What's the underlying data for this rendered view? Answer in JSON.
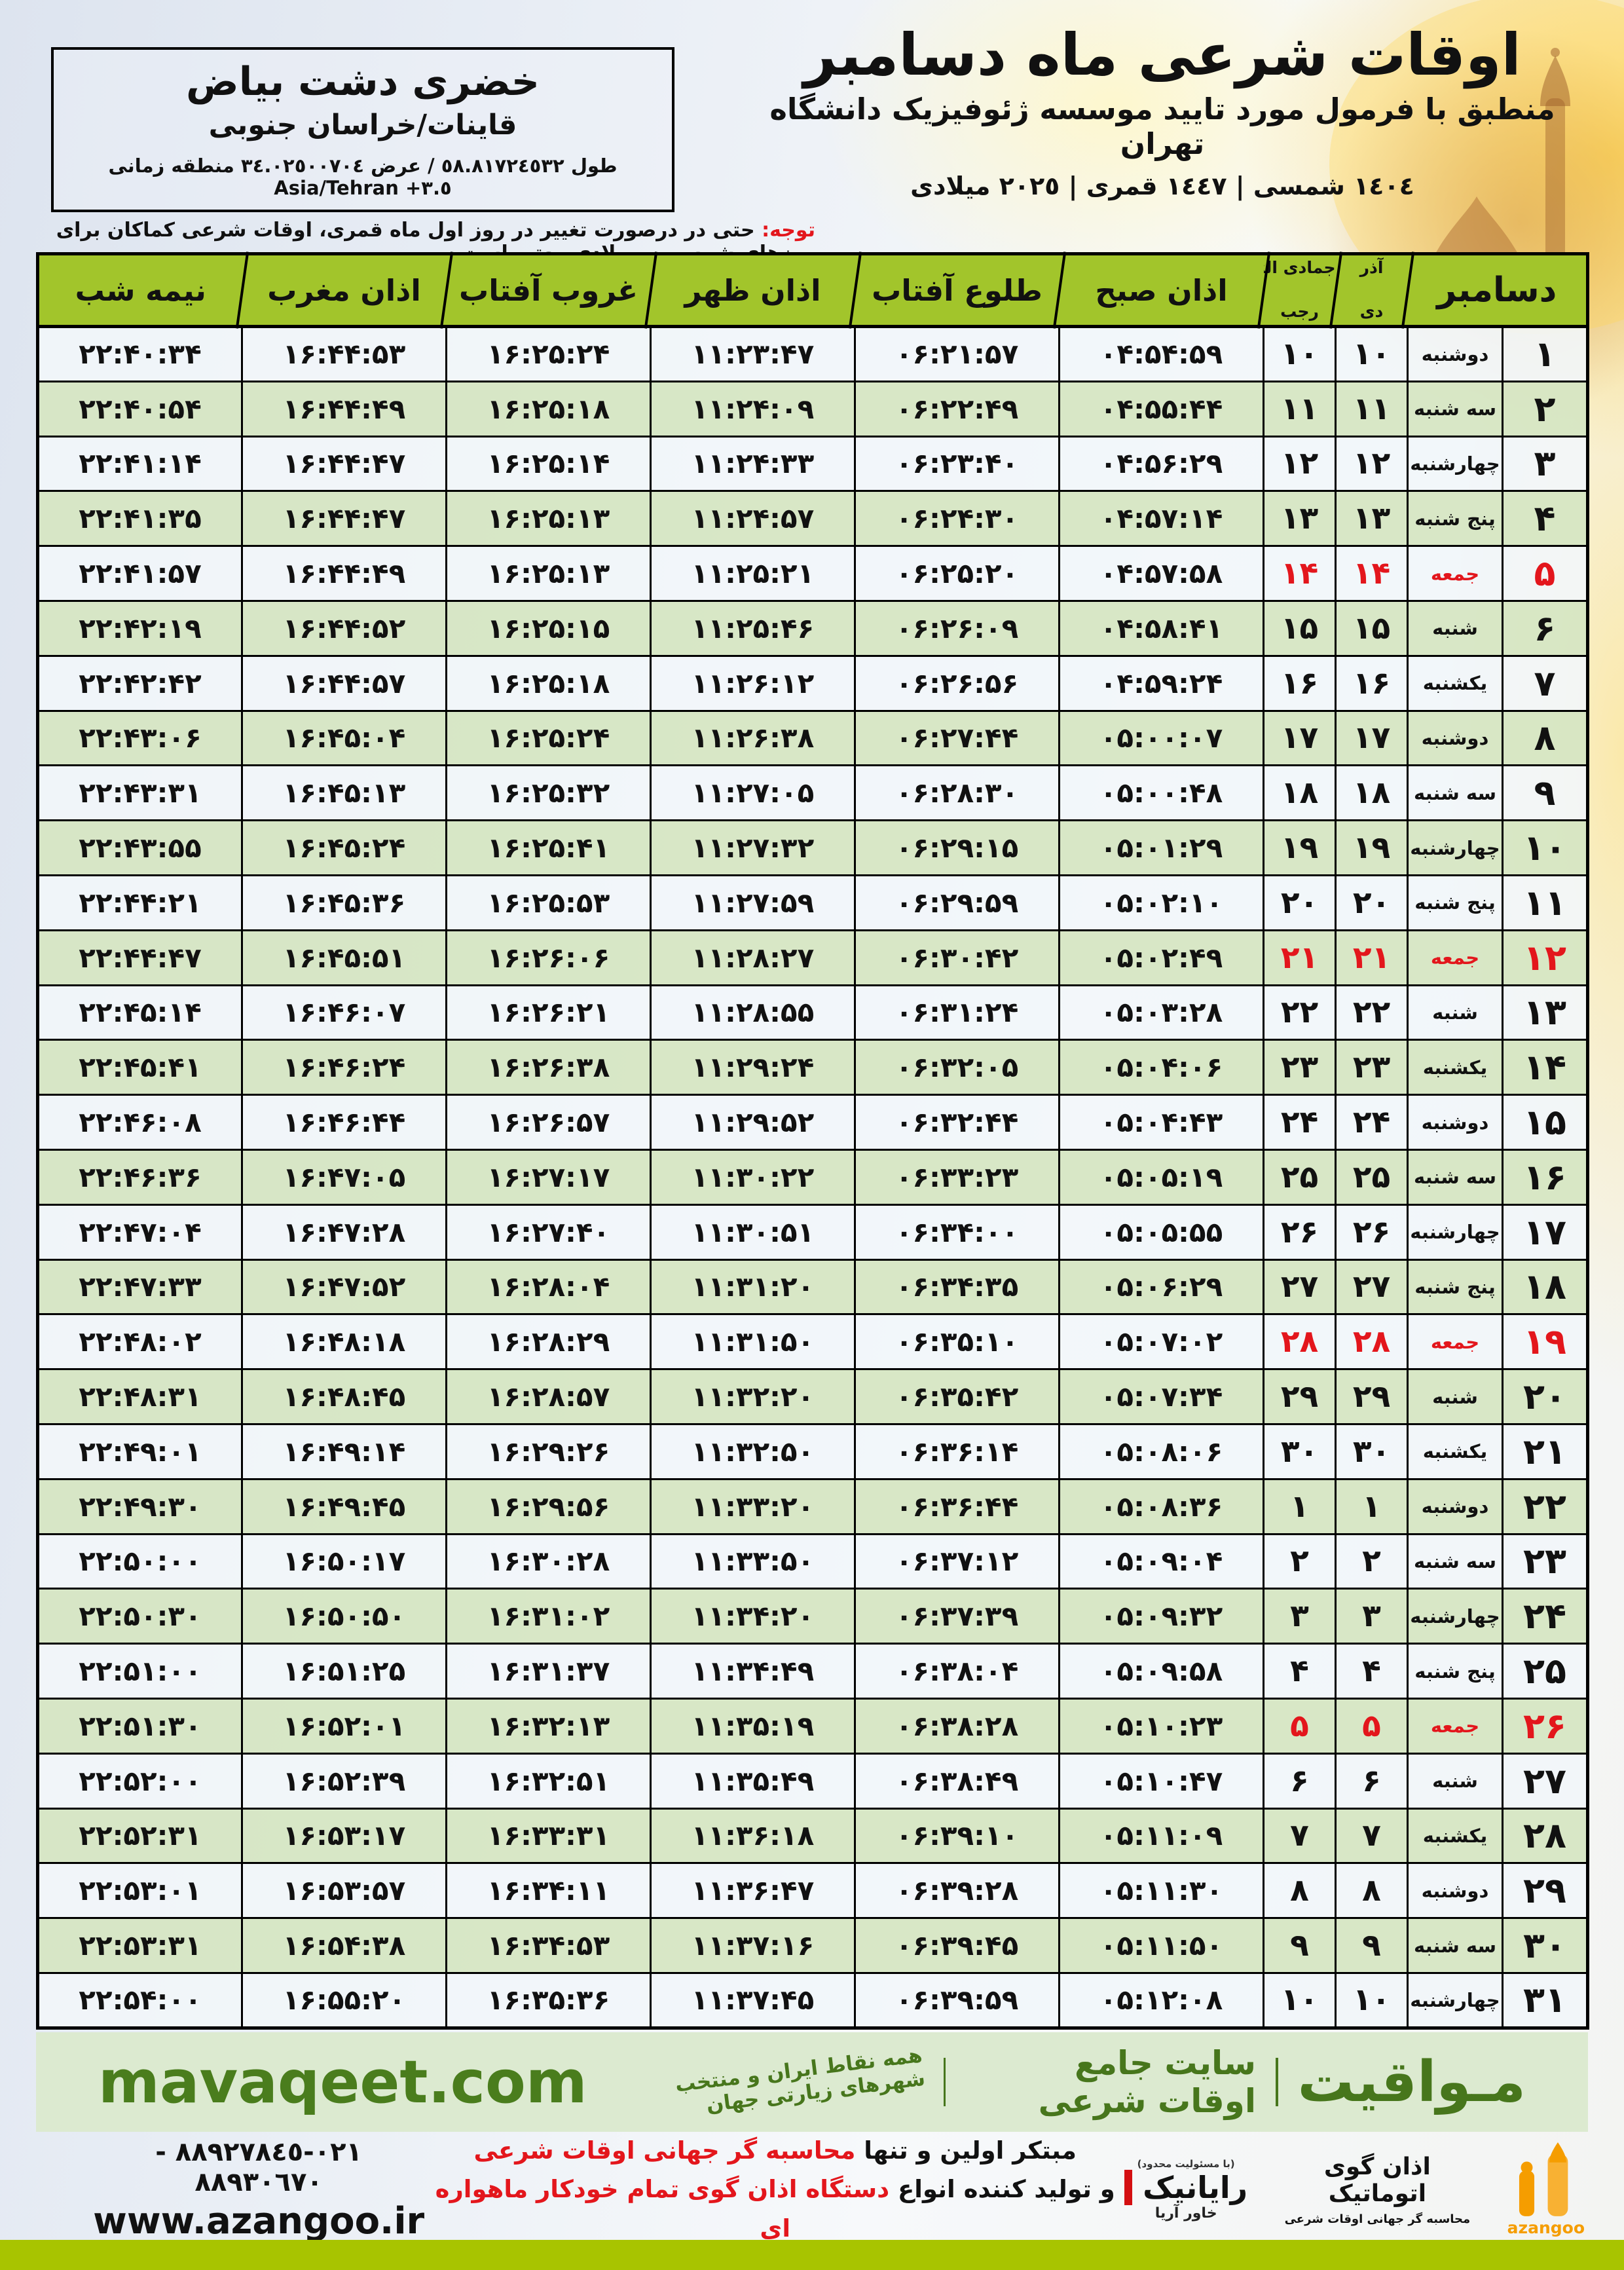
{
  "location": {
    "title": "خضری دشت بیاض",
    "region": "قاینات/خراسان جنوبی",
    "coords_prefix": "طول ٥٨.٨١٧٢٤٥٣٢ / عرض ٣٤.٠٢٥٠٠٧٠٤ منطقه زمانی",
    "timezone": "Asia/Tehran +٣.٥"
  },
  "header": {
    "title": "اوقات شرعی ماه دسامبر",
    "subtitle": "منطبق با فرمول مورد تایید موسسه ژئوفیزیک دانشگاه تهران",
    "years": "١٤٠٤ شمسی | ١٤٤٧ قمری | ٢٠٢٥ میلادی"
  },
  "notice": {
    "label": "توجه:",
    "text": "حتی در درصورت تغییر در روز اول ماه قمری، اوقات شرعی کماکان برای روزهای شمسی و میلادی معتبر است."
  },
  "table": {
    "cols": {
      "december": "دسامبر",
      "azar": "آذر",
      "dey": "دی",
      "jumada": "جمادی الثانی",
      "rajab": "رجب",
      "sobh": "اذان صبح",
      "tolu": "طلوع آفتاب",
      "zohr": "اذان ظهر",
      "ghorub": "غروب آفتاب",
      "maghreb": "اذان مغرب",
      "nimeshab": "نیمه شب"
    },
    "accent_red": "#e3161c",
    "header_green": "#a2c52b",
    "rows": [
      {
        "day": "۱",
        "wd": "دوشنبه",
        "pd": "۱۰",
        "hd": "۱۰",
        "sobh": "۰۴:۵۴:۵۹",
        "tolu": "۰۶:۲۱:۵۷",
        "zohr": "۱۱:۲۳:۴۷",
        "ghorub": "۱۶:۲۵:۲۴",
        "maghreb": "۱۶:۴۴:۵۳",
        "nimeshab": "۲۲:۴۰:۳۴",
        "friday": false
      },
      {
        "day": "۲",
        "wd": "سه شنبه",
        "pd": "۱۱",
        "hd": "۱۱",
        "sobh": "۰۴:۵۵:۴۴",
        "tolu": "۰۶:۲۲:۴۹",
        "zohr": "۱۱:۲۴:۰۹",
        "ghorub": "۱۶:۲۵:۱۸",
        "maghreb": "۱۶:۴۴:۴۹",
        "nimeshab": "۲۲:۴۰:۵۴",
        "friday": false
      },
      {
        "day": "۳",
        "wd": "چهارشنبه",
        "pd": "۱۲",
        "hd": "۱۲",
        "sobh": "۰۴:۵۶:۲۹",
        "tolu": "۰۶:۲۳:۴۰",
        "zohr": "۱۱:۲۴:۳۳",
        "ghorub": "۱۶:۲۵:۱۴",
        "maghreb": "۱۶:۴۴:۴۷",
        "nimeshab": "۲۲:۴۱:۱۴",
        "friday": false
      },
      {
        "day": "۴",
        "wd": "پنج شنبه",
        "pd": "۱۳",
        "hd": "۱۳",
        "sobh": "۰۴:۵۷:۱۴",
        "tolu": "۰۶:۲۴:۳۰",
        "zohr": "۱۱:۲۴:۵۷",
        "ghorub": "۱۶:۲۵:۱۳",
        "maghreb": "۱۶:۴۴:۴۷",
        "nimeshab": "۲۲:۴۱:۳۵",
        "friday": false
      },
      {
        "day": "۵",
        "wd": "جمعه",
        "pd": "۱۴",
        "hd": "۱۴",
        "sobh": "۰۴:۵۷:۵۸",
        "tolu": "۰۶:۲۵:۲۰",
        "zohr": "۱۱:۲۵:۲۱",
        "ghorub": "۱۶:۲۵:۱۳",
        "maghreb": "۱۶:۴۴:۴۹",
        "nimeshab": "۲۲:۴۱:۵۷",
        "friday": true
      },
      {
        "day": "۶",
        "wd": "شنبه",
        "pd": "۱۵",
        "hd": "۱۵",
        "sobh": "۰۴:۵۸:۴۱",
        "tolu": "۰۶:۲۶:۰۹",
        "zohr": "۱۱:۲۵:۴۶",
        "ghorub": "۱۶:۲۵:۱۵",
        "maghreb": "۱۶:۴۴:۵۲",
        "nimeshab": "۲۲:۴۲:۱۹",
        "friday": false
      },
      {
        "day": "۷",
        "wd": "یکشنبه",
        "pd": "۱۶",
        "hd": "۱۶",
        "sobh": "۰۴:۵۹:۲۴",
        "tolu": "۰۶:۲۶:۵۶",
        "zohr": "۱۱:۲۶:۱۲",
        "ghorub": "۱۶:۲۵:۱۸",
        "maghreb": "۱۶:۴۴:۵۷",
        "nimeshab": "۲۲:۴۲:۴۲",
        "friday": false
      },
      {
        "day": "۸",
        "wd": "دوشنبه",
        "pd": "۱۷",
        "hd": "۱۷",
        "sobh": "۰۵:۰۰:۰۷",
        "tolu": "۰۶:۲۷:۴۴",
        "zohr": "۱۱:۲۶:۳۸",
        "ghorub": "۱۶:۲۵:۲۴",
        "maghreb": "۱۶:۴۵:۰۴",
        "nimeshab": "۲۲:۴۳:۰۶",
        "friday": false
      },
      {
        "day": "۹",
        "wd": "سه شنبه",
        "pd": "۱۸",
        "hd": "۱۸",
        "sobh": "۰۵:۰۰:۴۸",
        "tolu": "۰۶:۲۸:۳۰",
        "zohr": "۱۱:۲۷:۰۵",
        "ghorub": "۱۶:۲۵:۳۲",
        "maghreb": "۱۶:۴۵:۱۳",
        "nimeshab": "۲۲:۴۳:۳۱",
        "friday": false
      },
      {
        "day": "۱۰",
        "wd": "چهارشنبه",
        "pd": "۱۹",
        "hd": "۱۹",
        "sobh": "۰۵:۰۱:۲۹",
        "tolu": "۰۶:۲۹:۱۵",
        "zohr": "۱۱:۲۷:۳۲",
        "ghorub": "۱۶:۲۵:۴۱",
        "maghreb": "۱۶:۴۵:۲۴",
        "nimeshab": "۲۲:۴۳:۵۵",
        "friday": false
      },
      {
        "day": "۱۱",
        "wd": "پنج شنبه",
        "pd": "۲۰",
        "hd": "۲۰",
        "sobh": "۰۵:۰۲:۱۰",
        "tolu": "۰۶:۲۹:۵۹",
        "zohr": "۱۱:۲۷:۵۹",
        "ghorub": "۱۶:۲۵:۵۳",
        "maghreb": "۱۶:۴۵:۳۶",
        "nimeshab": "۲۲:۴۴:۲۱",
        "friday": false
      },
      {
        "day": "۱۲",
        "wd": "جمعه",
        "pd": "۲۱",
        "hd": "۲۱",
        "sobh": "۰۵:۰۲:۴۹",
        "tolu": "۰۶:۳۰:۴۲",
        "zohr": "۱۱:۲۸:۲۷",
        "ghorub": "۱۶:۲۶:۰۶",
        "maghreb": "۱۶:۴۵:۵۱",
        "nimeshab": "۲۲:۴۴:۴۷",
        "friday": true
      },
      {
        "day": "۱۳",
        "wd": "شنبه",
        "pd": "۲۲",
        "hd": "۲۲",
        "sobh": "۰۵:۰۳:۲۸",
        "tolu": "۰۶:۳۱:۲۴",
        "zohr": "۱۱:۲۸:۵۵",
        "ghorub": "۱۶:۲۶:۲۱",
        "maghreb": "۱۶:۴۶:۰۷",
        "nimeshab": "۲۲:۴۵:۱۴",
        "friday": false
      },
      {
        "day": "۱۴",
        "wd": "یکشنبه",
        "pd": "۲۳",
        "hd": "۲۳",
        "sobh": "۰۵:۰۴:۰۶",
        "tolu": "۰۶:۳۲:۰۵",
        "zohr": "۱۱:۲۹:۲۴",
        "ghorub": "۱۶:۲۶:۳۸",
        "maghreb": "۱۶:۴۶:۲۴",
        "nimeshab": "۲۲:۴۵:۴۱",
        "friday": false
      },
      {
        "day": "۱۵",
        "wd": "دوشنبه",
        "pd": "۲۴",
        "hd": "۲۴",
        "sobh": "۰۵:۰۴:۴۳",
        "tolu": "۰۶:۳۲:۴۴",
        "zohr": "۱۱:۲۹:۵۲",
        "ghorub": "۱۶:۲۶:۵۷",
        "maghreb": "۱۶:۴۶:۴۴",
        "nimeshab": "۲۲:۴۶:۰۸",
        "friday": false
      },
      {
        "day": "۱۶",
        "wd": "سه شنبه",
        "pd": "۲۵",
        "hd": "۲۵",
        "sobh": "۰۵:۰۵:۱۹",
        "tolu": "۰۶:۳۳:۲۳",
        "zohr": "۱۱:۳۰:۲۲",
        "ghorub": "۱۶:۲۷:۱۷",
        "maghreb": "۱۶:۴۷:۰۵",
        "nimeshab": "۲۲:۴۶:۳۶",
        "friday": false
      },
      {
        "day": "۱۷",
        "wd": "چهارشنبه",
        "pd": "۲۶",
        "hd": "۲۶",
        "sobh": "۰۵:۰۵:۵۵",
        "tolu": "۰۶:۳۴:۰۰",
        "zohr": "۱۱:۳۰:۵۱",
        "ghorub": "۱۶:۲۷:۴۰",
        "maghreb": "۱۶:۴۷:۲۸",
        "nimeshab": "۲۲:۴۷:۰۴",
        "friday": false
      },
      {
        "day": "۱۸",
        "wd": "پنج شنبه",
        "pd": "۲۷",
        "hd": "۲۷",
        "sobh": "۰۵:۰۶:۲۹",
        "tolu": "۰۶:۳۴:۳۵",
        "zohr": "۱۱:۳۱:۲۰",
        "ghorub": "۱۶:۲۸:۰۴",
        "maghreb": "۱۶:۴۷:۵۲",
        "nimeshab": "۲۲:۴۷:۳۳",
        "friday": false
      },
      {
        "day": "۱۹",
        "wd": "جمعه",
        "pd": "۲۸",
        "hd": "۲۸",
        "sobh": "۰۵:۰۷:۰۲",
        "tolu": "۰۶:۳۵:۱۰",
        "zohr": "۱۱:۳۱:۵۰",
        "ghorub": "۱۶:۲۸:۲۹",
        "maghreb": "۱۶:۴۸:۱۸",
        "nimeshab": "۲۲:۴۸:۰۲",
        "friday": true
      },
      {
        "day": "۲۰",
        "wd": "شنبه",
        "pd": "۲۹",
        "hd": "۲۹",
        "sobh": "۰۵:۰۷:۳۴",
        "tolu": "۰۶:۳۵:۴۲",
        "zohr": "۱۱:۳۲:۲۰",
        "ghorub": "۱۶:۲۸:۵۷",
        "maghreb": "۱۶:۴۸:۴۵",
        "nimeshab": "۲۲:۴۸:۳۱",
        "friday": false
      },
      {
        "day": "۲۱",
        "wd": "یکشنبه",
        "pd": "۳۰",
        "hd": "۳۰",
        "sobh": "۰۵:۰۸:۰۶",
        "tolu": "۰۶:۳۶:۱۴",
        "zohr": "۱۱:۳۲:۵۰",
        "ghorub": "۱۶:۲۹:۲۶",
        "maghreb": "۱۶:۴۹:۱۴",
        "nimeshab": "۲۲:۴۹:۰۱",
        "friday": false
      },
      {
        "day": "۲۲",
        "wd": "دوشنبه",
        "pd": "۱",
        "hd": "۱",
        "sobh": "۰۵:۰۸:۳۶",
        "tolu": "۰۶:۳۶:۴۴",
        "zohr": "۱۱:۳۳:۲۰",
        "ghorub": "۱۶:۲۹:۵۶",
        "maghreb": "۱۶:۴۹:۴۵",
        "nimeshab": "۲۲:۴۹:۳۰",
        "friday": false
      },
      {
        "day": "۲۳",
        "wd": "سه شنبه",
        "pd": "۲",
        "hd": "۲",
        "sobh": "۰۵:۰۹:۰۴",
        "tolu": "۰۶:۳۷:۱۲",
        "zohr": "۱۱:۳۳:۵۰",
        "ghorub": "۱۶:۳۰:۲۸",
        "maghreb": "۱۶:۵۰:۱۷",
        "nimeshab": "۲۲:۵۰:۰۰",
        "friday": false
      },
      {
        "day": "۲۴",
        "wd": "چهارشنبه",
        "pd": "۳",
        "hd": "۳",
        "sobh": "۰۵:۰۹:۳۲",
        "tolu": "۰۶:۳۷:۳۹",
        "zohr": "۱۱:۳۴:۲۰",
        "ghorub": "۱۶:۳۱:۰۲",
        "maghreb": "۱۶:۵۰:۵۰",
        "nimeshab": "۲۲:۵۰:۳۰",
        "friday": false
      },
      {
        "day": "۲۵",
        "wd": "پنج شنبه",
        "pd": "۴",
        "hd": "۴",
        "sobh": "۰۵:۰۹:۵۸",
        "tolu": "۰۶:۳۸:۰۴",
        "zohr": "۱۱:۳۴:۴۹",
        "ghorub": "۱۶:۳۱:۳۷",
        "maghreb": "۱۶:۵۱:۲۵",
        "nimeshab": "۲۲:۵۱:۰۰",
        "friday": false
      },
      {
        "day": "۲۶",
        "wd": "جمعه",
        "pd": "۵",
        "hd": "۵",
        "sobh": "۰۵:۱۰:۲۳",
        "tolu": "۰۶:۳۸:۲۸",
        "zohr": "۱۱:۳۵:۱۹",
        "ghorub": "۱۶:۳۲:۱۳",
        "maghreb": "۱۶:۵۲:۰۱",
        "nimeshab": "۲۲:۵۱:۳۰",
        "friday": true
      },
      {
        "day": "۲۷",
        "wd": "شنبه",
        "pd": "۶",
        "hd": "۶",
        "sobh": "۰۵:۱۰:۴۷",
        "tolu": "۰۶:۳۸:۴۹",
        "zohr": "۱۱:۳۵:۴۹",
        "ghorub": "۱۶:۳۲:۵۱",
        "maghreb": "۱۶:۵۲:۳۹",
        "nimeshab": "۲۲:۵۲:۰۰",
        "friday": false
      },
      {
        "day": "۲۸",
        "wd": "یکشنبه",
        "pd": "۷",
        "hd": "۷",
        "sobh": "۰۵:۱۱:۰۹",
        "tolu": "۰۶:۳۹:۱۰",
        "zohr": "۱۱:۳۶:۱۸",
        "ghorub": "۱۶:۳۳:۳۱",
        "maghreb": "۱۶:۵۳:۱۷",
        "nimeshab": "۲۲:۵۲:۳۱",
        "friday": false
      },
      {
        "day": "۲۹",
        "wd": "دوشنبه",
        "pd": "۸",
        "hd": "۸",
        "sobh": "۰۵:۱۱:۳۰",
        "tolu": "۰۶:۳۹:۲۸",
        "zohr": "۱۱:۳۶:۴۷",
        "ghorub": "۱۶:۳۴:۱۱",
        "maghreb": "۱۶:۵۳:۵۷",
        "nimeshab": "۲۲:۵۳:۰۱",
        "friday": false
      },
      {
        "day": "۳۰",
        "wd": "سه شنبه",
        "pd": "۹",
        "hd": "۹",
        "sobh": "۰۵:۱۱:۵۰",
        "tolu": "۰۶:۳۹:۴۵",
        "zohr": "۱۱:۳۷:۱۶",
        "ghorub": "۱۶:۳۴:۵۳",
        "maghreb": "۱۶:۵۴:۳۸",
        "nimeshab": "۲۲:۵۳:۳۱",
        "friday": false
      },
      {
        "day": "۳۱",
        "wd": "چهارشنبه",
        "pd": "۱۰",
        "hd": "۱۰",
        "sobh": "۰۵:۱۲:۰۸",
        "tolu": "۰۶:۳۹:۵۹",
        "zohr": "۱۱:۳۷:۴۵",
        "ghorub": "۱۶:۳۵:۳۶",
        "maghreb": "۱۶:۵۵:۲۰",
        "nimeshab": "۲۲:۵۴:۰۰",
        "friday": false
      }
    ]
  },
  "footer": {
    "brand": "مـواقیت",
    "tag1": "سایت جامع اوقات شرعی",
    "tag2": "همه نقاط ایران و منتخب شهرهای زیارتی جهان",
    "site": "mavaqeet.com",
    "brand_green": "#47761c",
    "banner_bg": "#dcead0"
  },
  "bottom": {
    "phones": "٠٢١-٨٨٩٢٧٨٤٥ - ٨٨٩٣٠٦٧٠",
    "site": "www.azangoo.ir",
    "line1_black": "مبتکر اولین و تنها",
    "line1_red": "محاسبه گر جهانی اوقات شرعی",
    "line2_black": "و تولید کننده انواع",
    "line2_red": "دستگاه اذان گوی تمام خودکار ماهواره ای",
    "rayanik": "رایانیک",
    "rayanik_sub": "خاور آریا",
    "rayanik_note": "(با مسئولیت محدود)",
    "azangoo_title": "اذان گوی اتوماتیک",
    "azangoo_sub": "محاسبه گر جهانی اوقات شرعی",
    "azangoo_latin": "azangoo",
    "azangoo_orange": "#f59d00",
    "band_color": "#a8c400"
  }
}
